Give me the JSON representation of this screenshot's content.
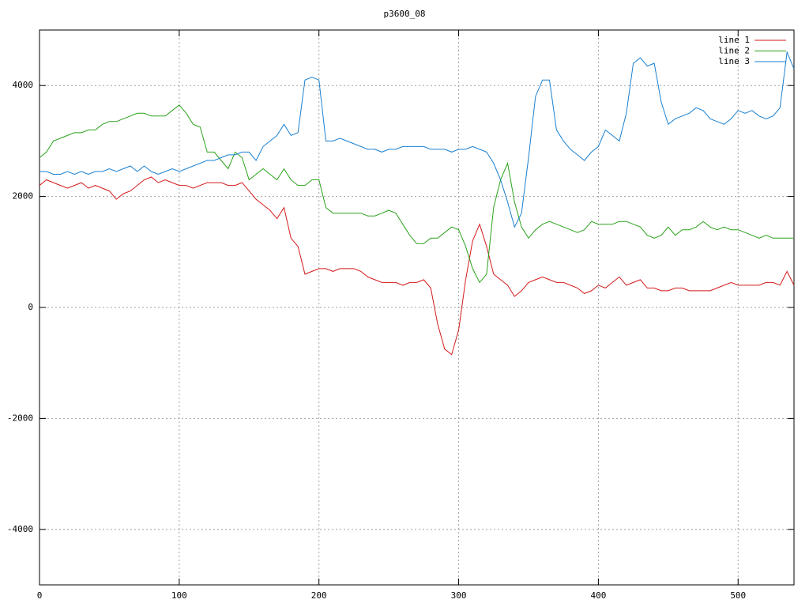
{
  "chart_data": {
    "type": "line",
    "title": "p3600_08",
    "x": [
      0,
      5,
      10,
      15,
      20,
      25,
      30,
      35,
      40,
      45,
      50,
      55,
      60,
      65,
      70,
      75,
      80,
      85,
      90,
      95,
      100,
      105,
      110,
      115,
      120,
      125,
      130,
      135,
      140,
      145,
      150,
      155,
      160,
      165,
      170,
      175,
      180,
      185,
      190,
      195,
      200,
      205,
      210,
      215,
      220,
      225,
      230,
      235,
      240,
      245,
      250,
      255,
      260,
      265,
      270,
      275,
      280,
      285,
      290,
      295,
      300,
      305,
      310,
      315,
      320,
      325,
      330,
      335,
      340,
      345,
      350,
      355,
      360,
      365,
      370,
      375,
      380,
      385,
      390,
      395,
      400,
      405,
      410,
      415,
      420,
      425,
      430,
      435,
      440,
      445,
      450,
      455,
      460,
      465,
      470,
      475,
      480,
      485,
      490,
      495,
      500,
      505,
      510,
      515,
      520,
      525,
      530,
      535,
      540
    ],
    "series": [
      {
        "name": "line 1",
        "color": "#d41a1a",
        "values": [
          2200,
          2300,
          2250,
          2200,
          2150,
          2200,
          2250,
          2150,
          2200,
          2150,
          2100,
          1950,
          2050,
          2100,
          2200,
          2300,
          2350,
          2250,
          2300,
          2250,
          2200,
          2200,
          2150,
          2200,
          2250,
          2250,
          2250,
          2200,
          2200,
          2250,
          2100,
          1950,
          1850,
          1750,
          1600,
          1800,
          1250,
          1100,
          600,
          650,
          700,
          700,
          650,
          700,
          700,
          700,
          650,
          550,
          500,
          450,
          450,
          450,
          400,
          450,
          450,
          500,
          350,
          -300,
          -750,
          -850,
          -400,
          500,
          1200,
          1500,
          1100,
          600,
          500,
          400,
          200,
          300,
          450,
          500,
          550,
          500,
          450,
          450,
          400,
          350,
          250,
          300,
          400,
          350,
          450,
          550,
          400,
          450,
          500,
          350,
          350,
          300,
          300,
          350,
          350,
          300,
          300,
          300,
          300,
          350,
          400,
          450,
          400,
          400,
          400,
          400,
          450,
          450,
          400,
          650,
          400
        ]
      },
      {
        "name": "line 2",
        "color": "#2aa21a",
        "values": [
          2700,
          2800,
          3000,
          3050,
          3100,
          3150,
          3150,
          3200,
          3200,
          3300,
          3350,
          3350,
          3400,
          3450,
          3500,
          3500,
          3450,
          3450,
          3450,
          3550,
          3650,
          3500,
          3300,
          3250,
          2800,
          2800,
          2650,
          2500,
          2800,
          2700,
          2300,
          2400,
          2500,
          2400,
          2300,
          2500,
          2300,
          2200,
          2200,
          2300,
          2300,
          1800,
          1700,
          1700,
          1700,
          1700,
          1700,
          1650,
          1650,
          1700,
          1750,
          1700,
          1500,
          1300,
          1150,
          1150,
          1250,
          1250,
          1350,
          1450,
          1400,
          1100,
          700,
          450,
          600,
          1800,
          2300,
          2600,
          1900,
          1450,
          1250,
          1400,
          1500,
          1550,
          1500,
          1450,
          1400,
          1350,
          1400,
          1550,
          1500,
          1500,
          1500,
          1550,
          1550,
          1500,
          1450,
          1300,
          1250,
          1300,
          1450,
          1300,
          1400,
          1400,
          1450,
          1550,
          1450,
          1400,
          1450,
          1400,
          1400,
          1350,
          1300,
          1250,
          1300,
          1250,
          1250,
          1250,
          1250
        ]
      },
      {
        "name": "line 3",
        "color": "#1a80d0",
        "values": [
          2450,
          2450,
          2400,
          2400,
          2450,
          2400,
          2450,
          2400,
          2450,
          2450,
          2500,
          2450,
          2500,
          2550,
          2450,
          2550,
          2450,
          2400,
          2450,
          2500,
          2450,
          2500,
          2550,
          2600,
          2650,
          2650,
          2700,
          2750,
          2750,
          2800,
          2800,
          2650,
          2900,
          3000,
          3100,
          3300,
          3100,
          3150,
          4100,
          4150,
          4100,
          3000,
          3000,
          3050,
          3000,
          2950,
          2900,
          2850,
          2850,
          2800,
          2850,
          2850,
          2900,
          2900,
          2900,
          2900,
          2850,
          2850,
          2850,
          2800,
          2850,
          2850,
          2900,
          2850,
          2800,
          2600,
          2300,
          1900,
          1450,
          1700,
          2700,
          3800,
          4100,
          4100,
          3200,
          3000,
          2850,
          2750,
          2650,
          2800,
          2900,
          3200,
          3100,
          3000,
          3500,
          4400,
          4500,
          4350,
          4400,
          3700,
          3300,
          3400,
          3450,
          3500,
          3600,
          3550,
          3400,
          3350,
          3300,
          3400,
          3550,
          3500,
          3550,
          3450,
          3400,
          3450,
          3600,
          4600,
          4300
        ]
      }
    ],
    "xlim": [
      0,
      540
    ],
    "ylim": [
      -5000,
      5000
    ],
    "xticks": [
      0,
      100,
      200,
      300,
      400,
      500
    ],
    "yticks": [
      -4000,
      -2000,
      0,
      2000,
      4000
    ],
    "grid": true,
    "legend": "top-right"
  }
}
